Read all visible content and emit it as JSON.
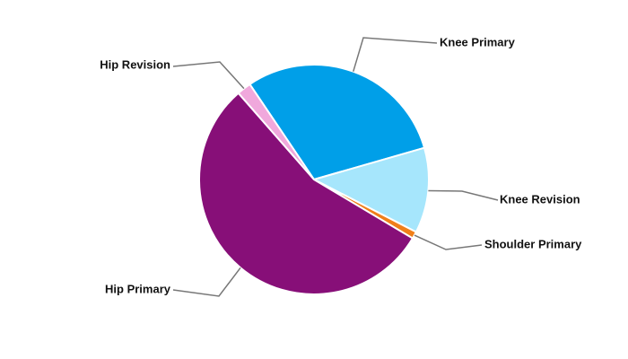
{
  "chart_data": {
    "type": "pie",
    "categories": [
      "Knee Primary",
      "Knee Revision",
      "Shoulder Primary",
      "Hip Primary",
      "Hip Revision"
    ],
    "values": [
      30,
      12,
      1,
      55,
      2
    ],
    "colors": [
      "#009fe8",
      "#a6e6fc",
      "#f07f1a",
      "#870f78",
      "#f0a8dc"
    ]
  }
}
